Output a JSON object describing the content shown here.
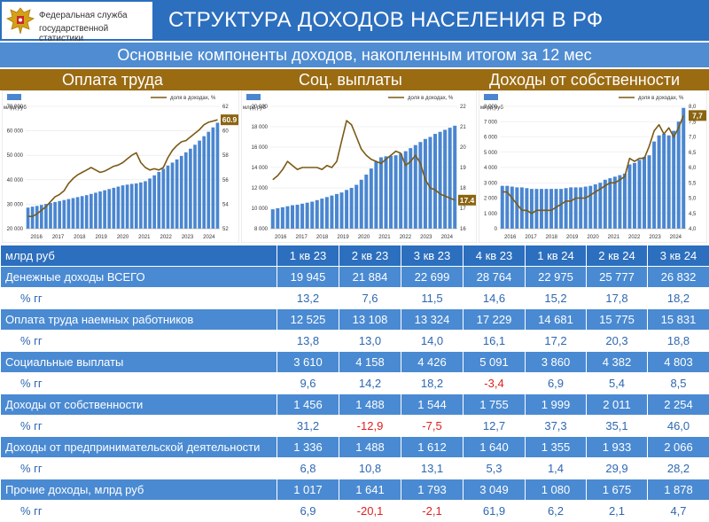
{
  "header": {
    "org_line1": "Федеральная служба",
    "org_line2": "государственной статистики",
    "title": "СТРУКТУРА ДОХОДОВ НАСЕЛЕНИЯ В РФ",
    "subtitle": "Основные компоненты доходов, накопленным итогом за 12 мес"
  },
  "sections": [
    "Оплата труда",
    "Соц. выплаты",
    "Доходы от собственности"
  ],
  "colors": {
    "header": "#2c6fbe",
    "subtitle_bar": "#4f8cd2",
    "section_bar": "#9b6b12",
    "bars": "#4a86d0",
    "line": "#7a5a16",
    "negative": "#e02020"
  },
  "chart_data": [
    {
      "type": "bar+line",
      "legend": [
        "млрд руб",
        "доля в доходах, %"
      ],
      "x_labels": [
        "2016",
        "2017",
        "2018",
        "2019",
        "2020",
        "2021",
        "2022",
        "2023",
        "2024"
      ],
      "ylim": [
        20000,
        70000
      ],
      "y_ticks": [
        "20 000",
        "30 000",
        "40 000",
        "50 000",
        "60 000",
        "70 000"
      ],
      "y2lim": [
        52,
        62
      ],
      "y2_ticks": [
        "52",
        "54",
        "56",
        "58",
        "60",
        "62"
      ],
      "end_label": "60.9",
      "bars": [
        28600,
        29000,
        29300,
        29700,
        30100,
        30500,
        30900,
        31300,
        31700,
        32100,
        32500,
        32900,
        33300,
        33700,
        34200,
        34700,
        35200,
        35700,
        36200,
        36700,
        37200,
        37700,
        38000,
        38300,
        38500,
        38900,
        39400,
        40500,
        41800,
        43200,
        44500,
        45800,
        47000,
        48300,
        49700,
        51200,
        52700,
        54300,
        56000,
        57800,
        59600,
        61400,
        63300
      ],
      "line": [
        53.0,
        53.0,
        53.2,
        53.5,
        53.8,
        54.2,
        54.6,
        54.8,
        55.1,
        55.7,
        56.1,
        56.4,
        56.6,
        56.8,
        57.0,
        56.8,
        56.6,
        56.7,
        56.9,
        57.1,
        57.2,
        57.4,
        57.7,
        58.0,
        58.2,
        57.4,
        57.0,
        56.8,
        56.9,
        56.8,
        57.0,
        57.8,
        58.4,
        58.8,
        59.1,
        59.2,
        59.5,
        59.8,
        60.1,
        60.5,
        60.7,
        60.8,
        60.9
      ]
    },
    {
      "type": "bar+line",
      "legend": [
        "млрд руб",
        "доля в доходах, %"
      ],
      "x_labels": [
        "2016",
        "2017",
        "2018",
        "2019",
        "2020",
        "2021",
        "2022",
        "2023",
        "2024"
      ],
      "ylim": [
        8000,
        20000
      ],
      "y_ticks": [
        "8 000",
        "10 000",
        "12 000",
        "14 000",
        "16 000",
        "18 000",
        "20 000"
      ],
      "y2lim": [
        16,
        22
      ],
      "y2_ticks": [
        "16",
        "17",
        "18",
        "19",
        "20",
        "21",
        "22"
      ],
      "end_label": "17.4",
      "bars": [
        9900,
        10000,
        10100,
        10200,
        10300,
        10350,
        10450,
        10550,
        10650,
        10800,
        10950,
        11100,
        11250,
        11400,
        11550,
        11800,
        12000,
        12300,
        12800,
        13300,
        13900,
        14600,
        15000,
        15100,
        15150,
        15200,
        15350,
        15600,
        15900,
        16200,
        16500,
        16800,
        17000,
        17300,
        17500,
        17700,
        17900,
        18100
      ],
      "line": [
        18.4,
        18.6,
        18.9,
        19.3,
        19.1,
        18.9,
        19.0,
        19.0,
        19.0,
        19.0,
        18.9,
        19.1,
        19.0,
        19.3,
        20.3,
        21.3,
        21.1,
        20.5,
        19.9,
        19.6,
        19.4,
        19.3,
        19.2,
        19.4,
        19.6,
        19.8,
        19.7,
        19.1,
        19.3,
        19.6,
        19.2,
        18.4,
        18.0,
        17.9,
        17.7,
        17.6,
        17.5,
        17.4
      ]
    },
    {
      "type": "bar+line",
      "legend": [
        "млрд руб",
        "доля в доходах, %"
      ],
      "x_labels": [
        "2016",
        "2017",
        "2018",
        "2019",
        "2020",
        "2021",
        "2022",
        "2023",
        "2024"
      ],
      "ylim": [
        0,
        8000
      ],
      "y_ticks": [
        "0",
        "1 000",
        "2 000",
        "3 000",
        "4 000",
        "5 000",
        "6 000",
        "7 000",
        "8 000"
      ],
      "y2lim": [
        4.0,
        8.0
      ],
      "y2_ticks": [
        "4,0",
        "4,5",
        "5,0",
        "5,5",
        "6,0",
        "6,5",
        "7,0",
        "7,5",
        "8,0"
      ],
      "end_label": "7,7",
      "bars": [
        2800,
        2800,
        2750,
        2700,
        2700,
        2650,
        2600,
        2600,
        2600,
        2600,
        2600,
        2600,
        2600,
        2650,
        2700,
        2700,
        2700,
        2750,
        2800,
        2900,
        3000,
        3200,
        3300,
        3400,
        3500,
        3600,
        4200,
        4300,
        4500,
        4700,
        4800,
        5700,
        6100,
        6200,
        6100,
        6400,
        7000,
        7900
      ],
      "line": [
        5.2,
        5.2,
        5.0,
        4.8,
        4.6,
        4.6,
        4.5,
        4.6,
        4.6,
        4.6,
        4.6,
        4.7,
        4.8,
        4.9,
        4.9,
        5.0,
        5.0,
        5.0,
        5.1,
        5.2,
        5.3,
        5.4,
        5.5,
        5.5,
        5.6,
        5.7,
        6.3,
        6.2,
        6.3,
        6.3,
        6.7,
        7.2,
        7.4,
        7.1,
        7.3,
        7.0,
        7.3,
        7.7
      ]
    }
  ],
  "table": {
    "header": [
      "млрд руб",
      "1 кв 23",
      "2 кв 23",
      "3 кв 23",
      "4 кв 23",
      "1 кв 24",
      "2 кв 24",
      "3 кв 24"
    ],
    "rows": [
      {
        "label": "Денежные доходы ВСЕГО",
        "values": [
          "19 945",
          "21 884",
          "22 699",
          "28 764",
          "22 975",
          "25 777",
          "26 832"
        ],
        "pct_label": "% гг",
        "pct": [
          "13,2",
          "7,6",
          "11,5",
          "14,6",
          "15,2",
          "17,8",
          "18,2"
        ]
      },
      {
        "label": "Оплата труда наемных работников",
        "values": [
          "12 525",
          "13 108",
          "13 324",
          "17 229",
          "14 681",
          "15 775",
          "15 831"
        ],
        "pct_label": "% гг",
        "pct": [
          "13,8",
          "13,0",
          "14,0",
          "16,1",
          "17,2",
          "20,3",
          "18,8"
        ]
      },
      {
        "label": "Социальные выплаты",
        "values": [
          "3 610",
          "4 158",
          "4 426",
          "5 091",
          "3 860",
          "4 382",
          "4 803"
        ],
        "pct_label": "% гг",
        "pct": [
          "9,6",
          "14,2",
          "18,2",
          "-3,4",
          "6,9",
          "5,4",
          "8,5"
        ]
      },
      {
        "label": "Доходы от собственности",
        "values": [
          "1 456",
          "1 488",
          "1 544",
          "1 755",
          "1 999",
          "2 011",
          "2 254"
        ],
        "pct_label": "% гг",
        "pct": [
          "31,2",
          "-12,9",
          "-7,5",
          "12,7",
          "37,3",
          "35,1",
          "46,0"
        ]
      },
      {
        "label": "Доходы от предпринимательской деятельности",
        "values": [
          "1 336",
          "1 488",
          "1 612",
          "1 640",
          "1 355",
          "1 933",
          "2 066"
        ],
        "pct_label": "% гг",
        "pct": [
          "6,8",
          "10,8",
          "13,1",
          "5,3",
          "1,4",
          "29,9",
          "28,2"
        ]
      },
      {
        "label": "Прочие доходы, млрд руб",
        "values": [
          "1 017",
          "1 641",
          "1 793",
          "3 049",
          "1 080",
          "1 675",
          "1 878"
        ],
        "pct_label": "% гг",
        "pct": [
          "6,9",
          "-20,1",
          "-2,1",
          "61,9",
          "6,2",
          "2,1",
          "4,7"
        ]
      }
    ]
  }
}
